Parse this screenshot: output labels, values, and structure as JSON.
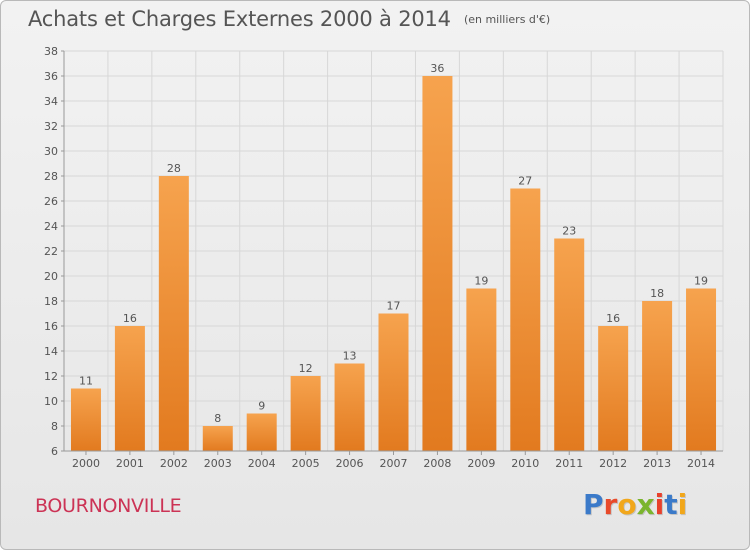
{
  "header": {
    "title": "Achats et Charges Externes 2000 à 2014",
    "subtitle": "(en milliers d'€)"
  },
  "footer": {
    "commune": "BOURNONVILLE",
    "logo_text": "Proxiti"
  },
  "colors": {
    "bar_top": "#f6a34e",
    "bar_bottom": "#e27a1f",
    "grid": "#d7d7d7",
    "text": "#555555",
    "commune": "#cc3355",
    "logo": [
      "#3b7ac9",
      "#e84a2a",
      "#f1a71b",
      "#7bb52e",
      "#e8402c",
      "#3b7ac9",
      "#f1a71b"
    ]
  },
  "chart_data": {
    "type": "bar",
    "title": "Achats et Charges Externes 2000 à 2014",
    "subtitle": "(en milliers d'€)",
    "xlabel": "",
    "ylabel": "",
    "categories": [
      "2000",
      "2001",
      "2002",
      "2003",
      "2004",
      "2005",
      "2006",
      "2007",
      "2008",
      "2009",
      "2010",
      "2011",
      "2012",
      "2013",
      "2014"
    ],
    "values": [
      11,
      16,
      28,
      8,
      9,
      12,
      13,
      17,
      36,
      19,
      27,
      23,
      16,
      18,
      19
    ],
    "ylim": [
      6,
      38
    ],
    "yticks": [
      6,
      8,
      10,
      12,
      14,
      16,
      18,
      20,
      22,
      24,
      26,
      28,
      30,
      32,
      34,
      36,
      38
    ],
    "grid": true,
    "data_labels": true,
    "legend": "none"
  }
}
